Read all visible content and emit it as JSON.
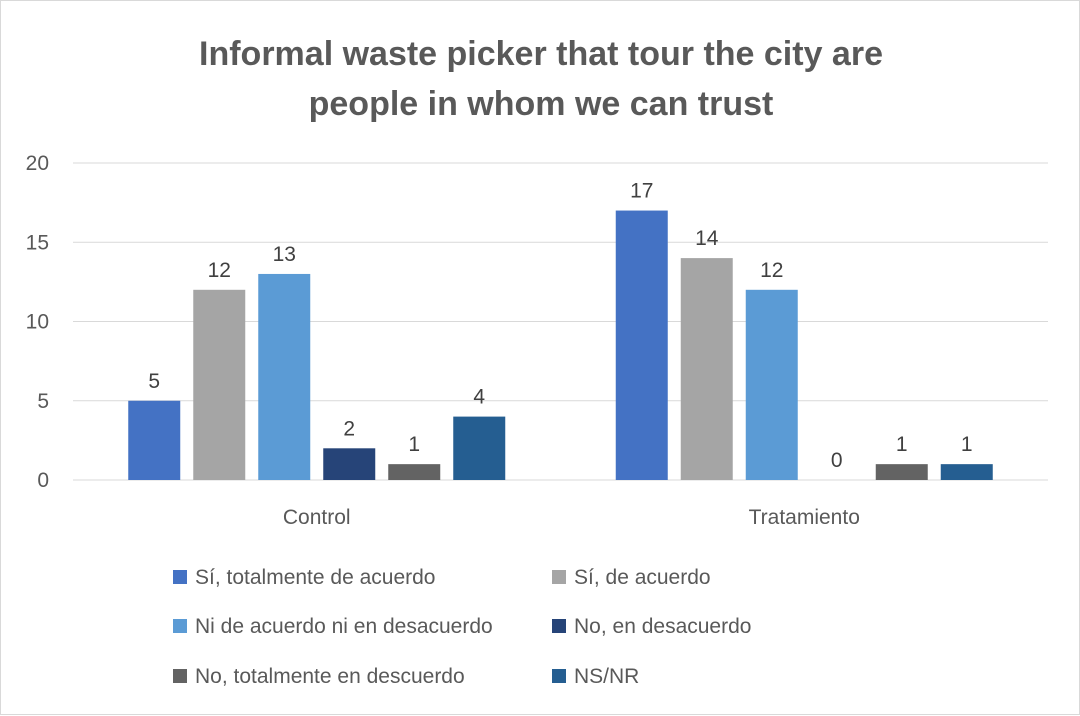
{
  "chart_data": {
    "type": "bar",
    "title_lines": [
      "Informal waste picker that tour the city are",
      "people in whom we can trust"
    ],
    "categories": [
      "Control",
      "Tratamiento"
    ],
    "series": [
      {
        "name": "Sí, totalmente de acuerdo",
        "color": "#4472c4",
        "values": [
          5,
          17
        ]
      },
      {
        "name": "Sí, de acuerdo",
        "color": "#a5a5a5",
        "values": [
          12,
          14
        ]
      },
      {
        "name": "Ni de acuerdo ni en desacuerdo",
        "color": "#5b9bd5",
        "values": [
          13,
          12
        ]
      },
      {
        "name": "No, en desacuerdo",
        "color": "#264478",
        "values": [
          2,
          0
        ]
      },
      {
        "name": "No, totalmente en descuerdo",
        "color": "#636363",
        "values": [
          1,
          1
        ]
      },
      {
        "name": "NS/NR",
        "color": "#255e91",
        "values": [
          4,
          1
        ]
      }
    ],
    "ylim": [
      0,
      20
    ],
    "yticks": [
      0,
      5,
      10,
      15,
      20
    ],
    "grid": true,
    "legend_position": "bottom"
  }
}
